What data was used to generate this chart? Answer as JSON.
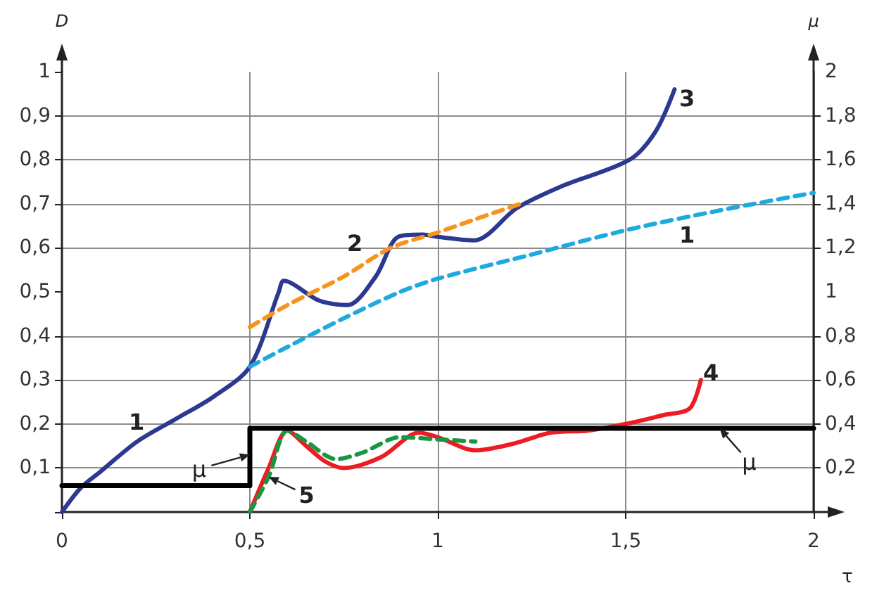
{
  "chart_data": {
    "type": "line",
    "xlabel": "τ",
    "ylabel": "D",
    "y2label": "μ",
    "xlim": [
      0,
      2
    ],
    "xticks": [
      0,
      {
        "value": 0.5,
        "label": "0,5"
      },
      1,
      {
        "value": 1.5,
        "label": "1,5"
      },
      2
    ],
    "ylim": [
      0,
      1
    ],
    "yticks": [
      {
        "value": 0,
        "label": null
      },
      {
        "value": 0.1,
        "label": "0,1"
      },
      {
        "value": 0.2,
        "label": "0,2"
      },
      {
        "value": 0.3,
        "label": "0,3"
      },
      {
        "value": 0.4,
        "label": "0,4"
      },
      {
        "value": 0.5,
        "label": "0,5"
      },
      {
        "value": 0.6,
        "label": "0,6"
      },
      {
        "value": 0.7,
        "label": "0,7"
      },
      {
        "value": 0.8,
        "label": "0,8"
      },
      {
        "value": 0.9,
        "label": "0,9"
      },
      1
    ],
    "y2lim": [
      0,
      2
    ],
    "y2ticks": [
      {
        "value": 0.2,
        "label": "0,2"
      },
      {
        "value": 0.4,
        "label": "0,4"
      },
      {
        "value": 0.6,
        "label": "0,6"
      },
      {
        "value": 0.8,
        "label": "0,8"
      },
      1,
      {
        "value": 1.2,
        "label": "1,2"
      },
      {
        "value": 1.4,
        "label": "1,4"
      },
      {
        "value": 1.6,
        "label": "1,6"
      },
      {
        "value": 1.8,
        "label": "1,8"
      },
      2
    ],
    "grid": true,
    "legend": false,
    "marker": "none",
    "series": [
      {
        "color": "#2b3990",
        "line_style": "solid",
        "x": [
          0,
          0.05,
          0.1,
          0.2,
          0.3,
          0.4,
          0.5,
          0.577,
          0.59,
          0.685,
          0.76,
          0.835,
          0.895,
          0.96,
          1.0,
          1.097,
          1.21,
          1.33,
          1.51,
          1.58,
          1.63
        ],
        "values": [
          0,
          0.055,
          0.09,
          0.16,
          0.21,
          0.26,
          0.33,
          0.5,
          0.525,
          0.48,
          0.47,
          0.535,
          0.625,
          0.63,
          0.625,
          0.617,
          0.69,
          0.74,
          0.8,
          0.865,
          0.96
        ]
      },
      {
        "color": "#f7941d",
        "line_style": "dashed",
        "x": [
          0.5,
          0.6,
          0.75,
          0.875,
          1.0,
          1.1,
          1.22
        ],
        "values": [
          0.42,
          0.47,
          0.535,
          0.6,
          0.635,
          0.665,
          0.7
        ]
      },
      {
        "color": "#1fa9e1",
        "line_style": "dashed",
        "x": [
          0.5,
          0.6,
          0.75,
          0.9,
          1.0,
          1.25,
          1.5,
          1.75,
          2.0
        ],
        "values": [
          0.33,
          0.375,
          0.44,
          0.5,
          0.53,
          0.585,
          0.64,
          0.685,
          0.725
        ]
      },
      {
        "color": "#ed1c24",
        "line_style": "solid",
        "x": [
          0.5,
          0.55,
          0.6,
          0.65,
          0.7,
          0.75,
          0.85,
          0.95,
          1.0,
          1.1,
          1.2,
          1.3,
          1.4,
          1.5,
          1.6,
          1.67,
          1.7
        ],
        "values": [
          0,
          0.1,
          0.185,
          0.15,
          0.115,
          0.1,
          0.125,
          0.18,
          0.17,
          0.14,
          0.155,
          0.18,
          0.185,
          0.2,
          0.22,
          0.235,
          0.3
        ]
      },
      {
        "color": "#1a9641",
        "line_style": "dashed",
        "x": [
          0.5,
          0.55,
          0.6,
          0.65,
          0.73,
          0.8,
          0.9,
          1.0,
          1.1
        ],
        "values": [
          0,
          0.08,
          0.185,
          0.16,
          0.12,
          0.135,
          0.17,
          0.165,
          0.16
        ]
      },
      {
        "type": "step",
        "axis": "y2",
        "color": "#000000",
        "line_style": "solid",
        "x": [
          0,
          0.5,
          2
        ],
        "values": [
          0.12,
          0.38,
          0.38
        ]
      }
    ],
    "annotations": [
      "1",
      "2",
      "3",
      "1",
      "4",
      {
        "text": "5",
        "x": 0.55,
        "y": 0.08
      },
      {
        "text": "μ",
        "x": 0.5,
        "y": 0.13
      },
      {
        "text": "μ",
        "x": 1.75,
        "y": 0.19
      }
    ]
  }
}
